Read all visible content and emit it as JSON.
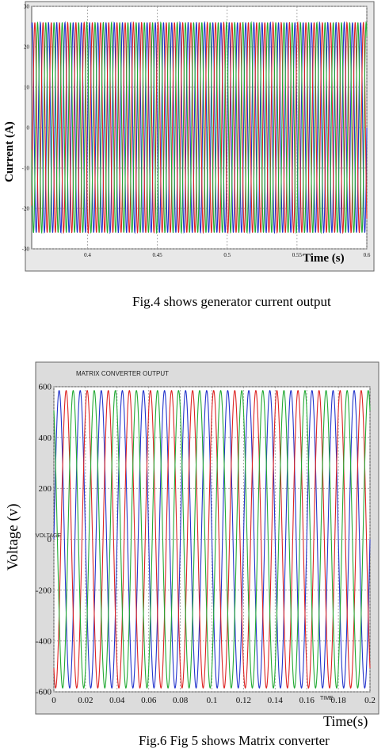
{
  "chart_data": [
    {
      "type": "line",
      "title": "",
      "xlabel": "Time (s)",
      "ylabel": "Current (A)",
      "xlim": [
        0.36,
        0.6
      ],
      "ylim": [
        -30,
        30
      ],
      "x_ticks": [
        "0.4",
        "0.45",
        "0.5",
        "0.55",
        "0.6"
      ],
      "y_ticks": [
        "30",
        "20",
        "10",
        "0",
        "-10",
        "-20",
        "-30"
      ],
      "grid": true,
      "frequency_hz": 170,
      "series": [
        {
          "color": "#2233cc",
          "amplitude": 26,
          "phase_deg": 0
        },
        {
          "color": "#dd2222",
          "amplitude": 26,
          "phase_deg": -120
        },
        {
          "color": "#22aa33",
          "amplitude": 26,
          "phase_deg": 120
        }
      ]
    },
    {
      "type": "line",
      "title": "MATRIX CONVERTER OUTPUT",
      "xlabel": "Time(s)",
      "ylabel": "Voltage (v)",
      "xlim": [
        0,
        0.2
      ],
      "ylim": [
        -600,
        600
      ],
      "x_ticks": [
        "0",
        "0.02",
        "0.04",
        "0.06",
        "0.08",
        "0.1",
        "0.12",
        "0.14",
        "0.16",
        "0.18",
        "0.2"
      ],
      "y_ticks": [
        "600",
        "400",
        "200",
        "0",
        "-200",
        "-400",
        "-600"
      ],
      "grid": true,
      "frequency_hz": 75,
      "signal_label": "VOLTAGE",
      "time_tag": "TIME",
      "series": [
        {
          "color": "#2233cc",
          "amplitude": 585,
          "phase_deg": 0
        },
        {
          "color": "#dd2222",
          "amplitude": 585,
          "phase_deg": -120
        },
        {
          "color": "#22aa33",
          "amplitude": 585,
          "phase_deg": 120
        }
      ]
    }
  ],
  "captions": {
    "fig4": "Fig.4 shows generator current output",
    "fig6": "Fig.6 Fig 5 shows Matrix converter"
  }
}
